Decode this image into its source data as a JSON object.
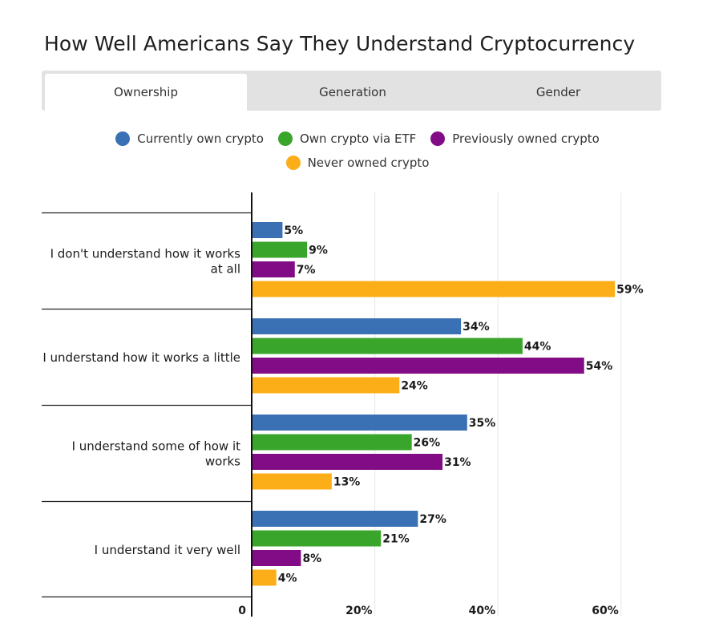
{
  "title": "How Well Americans Say They Understand Cryptocurrency",
  "tabs": [
    {
      "label": "Ownership",
      "active": true
    },
    {
      "label": "Generation",
      "active": false
    },
    {
      "label": "Gender",
      "active": false
    }
  ],
  "legend": [
    {
      "label": "Currently own crypto",
      "color": "#3a70b4"
    },
    {
      "label": "Own crypto via ETF",
      "color": "#3aa52b"
    },
    {
      "label": "Previously owned crypto",
      "color": "#820c86"
    },
    {
      "label": "Never owned crypto",
      "color": "#fbae17"
    }
  ],
  "chart_data": {
    "type": "bar",
    "orientation": "horizontal",
    "categories": [
      [
        "I don't understand how it works",
        "at all"
      ],
      [
        "I understand how it works a little"
      ],
      [
        "I understand some of how it",
        "works"
      ],
      [
        "I understand it very well"
      ]
    ],
    "series": [
      {
        "name": "Currently own crypto",
        "color": "#3a70b4",
        "values": [
          5,
          34,
          35,
          27
        ]
      },
      {
        "name": "Own crypto via ETF",
        "color": "#3aa52b",
        "values": [
          9,
          44,
          26,
          21
        ]
      },
      {
        "name": "Previously owned crypto",
        "color": "#820c86",
        "values": [
          7,
          54,
          31,
          8
        ]
      },
      {
        "name": "Never owned crypto",
        "color": "#fbae17",
        "values": [
          59,
          24,
          13,
          4
        ]
      }
    ],
    "value_suffix": "%",
    "xlim": [
      0,
      60
    ],
    "xticks": [
      {
        "value": 0,
        "label": "0"
      },
      {
        "value": 20,
        "label": "20%"
      },
      {
        "value": 40,
        "label": "40%"
      },
      {
        "value": 60,
        "label": "60%"
      }
    ],
    "grid": true
  }
}
